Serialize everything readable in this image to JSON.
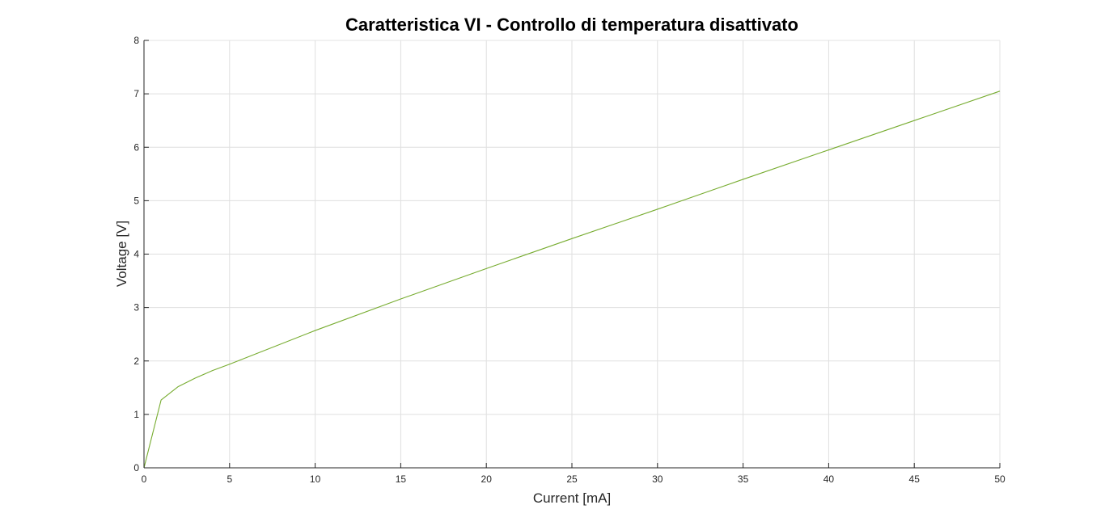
{
  "chart_data": {
    "type": "line",
    "title": "Caratteristica VI - Controllo di temperatura disattivato",
    "xlabel": "Current [mA]",
    "ylabel": "Voltage [V]",
    "xlim": [
      0,
      50
    ],
    "ylim": [
      0,
      8
    ],
    "xticks": [
      0,
      5,
      10,
      15,
      20,
      25,
      30,
      35,
      40,
      45,
      50
    ],
    "yticks": [
      0,
      1,
      2,
      3,
      4,
      5,
      6,
      7,
      8
    ],
    "grid": true,
    "series": [
      {
        "color": "#77ac30",
        "x": [
          0,
          1,
          2,
          3,
          4,
          5,
          10,
          15,
          20,
          25,
          30,
          35,
          40,
          45,
          50
        ],
        "y": [
          0,
          1.27,
          1.52,
          1.68,
          1.82,
          1.94,
          2.57,
          3.16,
          3.73,
          4.29,
          4.84,
          5.4,
          5.95,
          6.5,
          7.05
        ]
      }
    ]
  }
}
